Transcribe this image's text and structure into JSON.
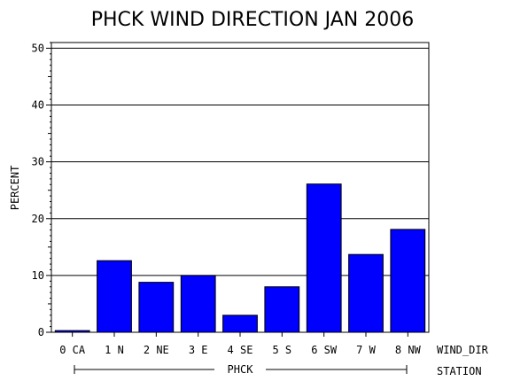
{
  "chart_data": {
    "type": "bar",
    "title": "PHCK WIND DIRECTION JAN 2006",
    "ylabel": "PERCENT",
    "xlabel": "WIND_DIR",
    "group_axis_label": "STATION",
    "group_label": "PHCK",
    "categories": [
      "0 CA",
      "1 N",
      "2 NE",
      "3 E",
      "4 SE",
      "5 S",
      "6 SW",
      "7 W",
      "8 NW"
    ],
    "values": [
      0.3,
      12.6,
      8.8,
      10.0,
      3.0,
      8.0,
      26.1,
      13.7,
      18.1
    ],
    "yticks": [
      "0",
      "10",
      "20",
      "30",
      "40",
      "50"
    ],
    "ylim": [
      0,
      51
    ],
    "grid": true,
    "bar_color": "#0000ff"
  }
}
